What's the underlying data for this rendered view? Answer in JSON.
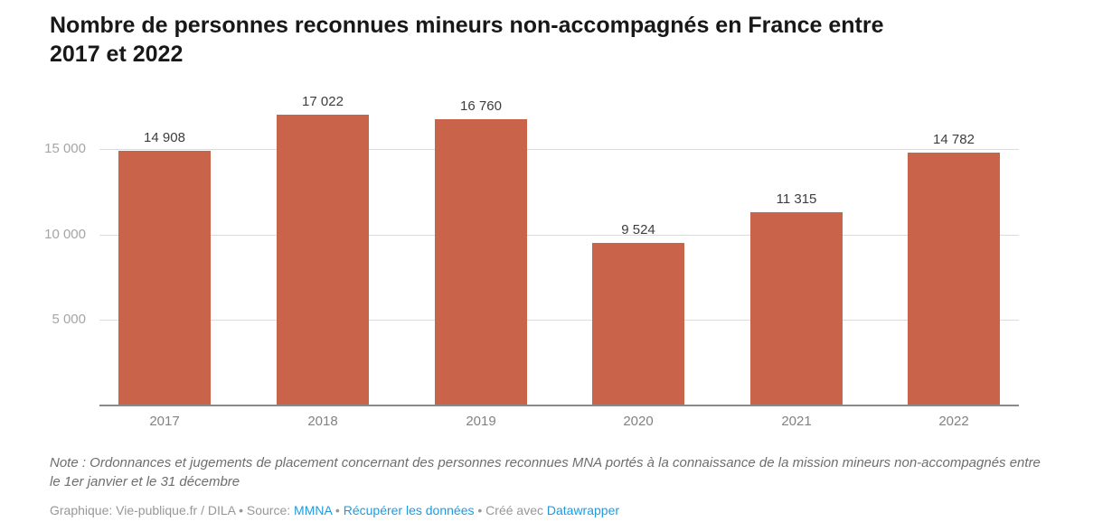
{
  "header": {
    "title_lines": [
      "Nombre de personnes reconnues mineurs non-accompagnés en France entre",
      "2017 et 2022"
    ]
  },
  "chart_data": {
    "type": "bar",
    "title": "Nombre de personnes reconnues mineurs non-accompagnés en France entre 2017 et 2022",
    "categories": [
      "2017",
      "2018",
      "2019",
      "2020",
      "2021",
      "2022"
    ],
    "values": [
      14908,
      17022,
      16760,
      9524,
      11315,
      14782
    ],
    "value_labels": [
      "14 908",
      "17 022",
      "16 760",
      "9 524",
      "11 315",
      "14 782"
    ],
    "y_ticks": [
      {
        "value": 5000,
        "label": "5 000"
      },
      {
        "value": 10000,
        "label": "10 000"
      },
      {
        "value": 15000,
        "label": "15 000"
      }
    ],
    "ylim": [
      0,
      18000
    ],
    "xlabel": "",
    "ylabel": "",
    "grid": true,
    "legend": "none",
    "bar_color": "#c96349"
  },
  "footer": {
    "note": "Note : Ordonnances et jugements de placement concernant des personnes reconnues MNA portés à la connaissance de la mission mineurs non-accompagnés entre le 1er janvier et le 31 décembre",
    "attribution": {
      "graphique": "Graphique: Vie-publique.fr / DILA",
      "sep": "•",
      "source_label": "Source:",
      "source_link": "MMNA",
      "data_link": "Récupérer les données",
      "created_with": "Créé avec",
      "tool_link": "Datawrapper"
    }
  },
  "colors": {
    "bar": "#c96349",
    "gridline": "#dcdcdc",
    "axis_line": "#8a8a8a",
    "link": "#1d9be0",
    "title_text": "#181818",
    "value_label_text": "#3d3d3d",
    "ytick_text": "#a5a5a5",
    "xtick_text": "#828282",
    "note_text": "#6e6e6e",
    "byline_text": "#979797"
  }
}
